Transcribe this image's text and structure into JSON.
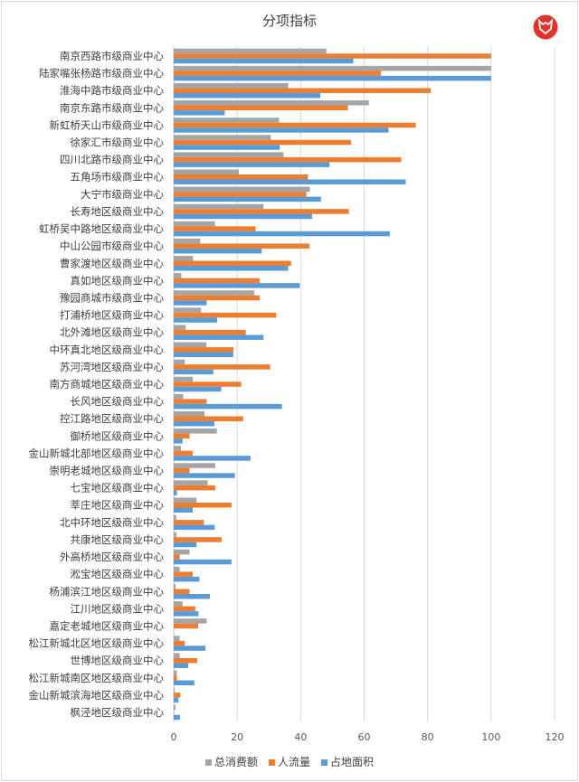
{
  "chart_data": {
    "type": "bar",
    "orientation": "horizontal",
    "title": "分项指标",
    "xlim": [
      0,
      120
    ],
    "xticks": [
      0,
      20,
      40,
      60,
      80,
      100,
      120
    ],
    "grid": true,
    "legend_position": "bottom",
    "categories": [
      "南京西路市级商业中心",
      "陆家嘴张杨路市级商业中心",
      "淮海中路市级商业中心",
      "南京东路市级商业中心",
      "新虹桥天山市级商业中心",
      "徐家汇市级商业中心",
      "四川北路市级商业中心",
      "五角场市级商业中心",
      "大宁市级商业中心",
      "长寿地区级商业中心",
      "虹桥吴中路地区级商业中心",
      "中山公园市级商业中心",
      "曹家渡地区级商业中心",
      "真如地区级商业中心",
      "豫园商城市级商业中心",
      "打浦桥地区级商业中心",
      "北外滩地区级商业中心",
      "中环真北地区级商业中心",
      "苏河湾地区级商业中心",
      "南方商城地区级商业中心",
      "长风地区级商业中心",
      "控江路地区级商业中心",
      "御桥地区级商业中心",
      "金山新城北部地区级商业中心",
      "崇明老城地区级商业中心",
      "七宝地区级商业中心",
      "莘庄地区级商业中心",
      "北中环地区级商业中心",
      "共康地区级商业中心",
      "外高桥地区级商业中心",
      "淞宝地区级商业中心",
      "杨浦滨江地区级商业中心",
      "江川地区级商业中心",
      "嘉定老城地区级商业中心",
      "松江新城北区地区级商业中心",
      "世博地区级商业中心",
      "松江新城南区地区级商业中心",
      "金山新城滨海地区级商业中心",
      "枫泾地区级商业中心"
    ],
    "series": [
      {
        "name": "总消费额",
        "color": "#a5a5a5",
        "values": [
          48.1,
          100,
          36.1,
          61.5,
          33.2,
          30.6,
          34.6,
          20.5,
          42.9,
          28.3,
          13,
          8.4,
          6.1,
          2.4,
          25.4,
          8.6,
          3.8,
          10.3,
          3.5,
          6,
          3,
          9.7,
          13.6,
          2.3,
          13.1,
          10.7,
          7.2,
          0.8,
          0.9,
          5,
          1.9,
          0.6,
          2.8,
          10.4,
          1.9,
          1.9,
          1,
          0.3,
          0.6
        ]
      },
      {
        "name": "人流量",
        "color": "#ed7d31",
        "values": [
          100,
          65.3,
          81,
          54.9,
          76.3,
          55.9,
          71.7,
          42.3,
          41.8,
          55.2,
          25.8,
          42.8,
          37,
          27.1,
          27.1,
          32.3,
          22.7,
          18.8,
          30.4,
          21.3,
          10.4,
          21.9,
          5,
          6,
          5,
          13.1,
          18.2,
          9.5,
          15.1,
          1.9,
          6,
          5,
          6.8,
          7.7,
          3.5,
          7.4,
          1,
          2.1,
          0.1
        ]
      },
      {
        "name": "占地面积",
        "color": "#5b9bd5",
        "values": [
          56.6,
          100,
          46.2,
          16.1,
          67.7,
          33.4,
          49.1,
          73.1,
          46.4,
          43.6,
          68.1,
          27.7,
          36.1,
          39.7,
          10.4,
          13.7,
          28.3,
          18.8,
          12.5,
          15,
          34.1,
          12.8,
          2.8,
          24.2,
          19.3,
          1,
          6,
          12.9,
          7.2,
          18.2,
          8.1,
          11.4,
          7.8,
          0,
          10,
          4.6,
          6.5,
          1.5,
          2
        ]
      }
    ]
  },
  "logo": {
    "color": "#e5312b"
  }
}
